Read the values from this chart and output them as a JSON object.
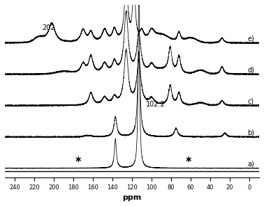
{
  "xlabel": "ppm",
  "x_ticks": [
    240,
    220,
    200,
    180,
    160,
    140,
    120,
    100,
    80,
    60,
    40,
    20,
    0
  ],
  "spectra_labels": [
    "e)",
    "d)",
    "c)",
    "b)",
    "a)"
  ],
  "label_202": "202",
  "label_102": "102.2",
  "line_color": "#000000",
  "offsets": [
    0.82,
    0.615,
    0.41,
    0.205,
    0.0
  ],
  "spectrum_scale": 0.16,
  "noise_scale": 0.003
}
